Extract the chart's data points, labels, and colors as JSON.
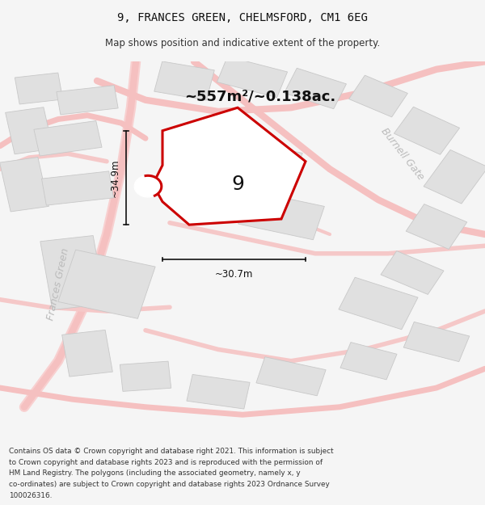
{
  "title": "9, FRANCES GREEN, CHELMSFORD, CM1 6EG",
  "subtitle": "Map shows position and indicative extent of the property.",
  "area_label": "~557m²/~0.138ac.",
  "plot_number": "9",
  "dim_width": "~30.7m",
  "dim_height": "~34.9m",
  "street_label_1": "Burnell Gate",
  "street_label_2": "Frances Green",
  "footer_lines": [
    "Contains OS data © Crown copyright and database right 2021. This information is subject",
    "to Crown copyright and database rights 2023 and is reproduced with the permission of",
    "HM Land Registry. The polygons (including the associated geometry, namely x, y",
    "co-ordinates) are subject to Crown copyright and database rights 2023 Ordnance Survey",
    "100026316."
  ],
  "bg_color": "#f5f5f5",
  "map_bg": "#ffffff",
  "plot_fill": "#ffffff",
  "plot_edge": "#cc0000",
  "building_fill": "#e0e0e0",
  "building_edge": "#c8c8c8",
  "road_color": "#f5c8c8",
  "road_thin": "#f0b0b0"
}
